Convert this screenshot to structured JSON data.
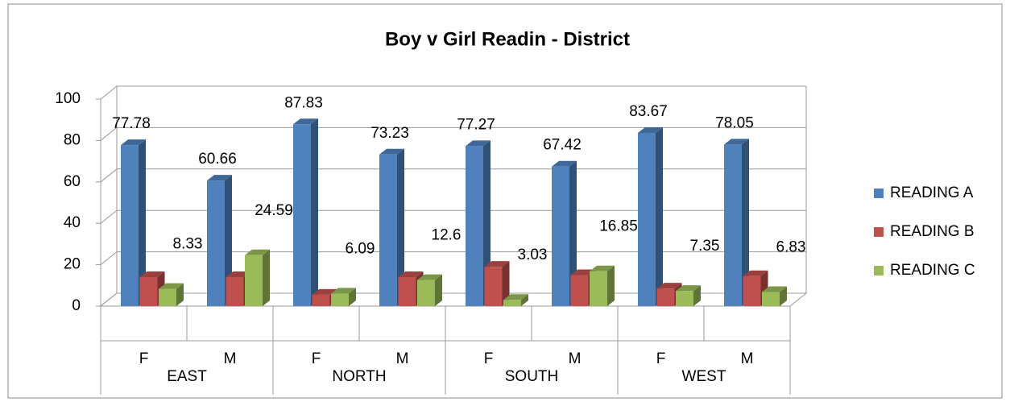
{
  "chart_data": {
    "type": "bar3d",
    "title": "Boy v Girl Readin - District",
    "categories": [
      "F",
      "M",
      "F",
      "M",
      "F",
      "M",
      "F",
      "M"
    ],
    "groups": [
      "EAST",
      "NORTH",
      "SOUTH",
      "WEST"
    ],
    "series": [
      {
        "name": "READING A",
        "color": "#4f81bd",
        "show_labels": true,
        "values": [
          77.78,
          60.66,
          87.83,
          73.23,
          77.27,
          67.42,
          83.67,
          78.05
        ]
      },
      {
        "name": "READING B",
        "color": "#c0504d",
        "show_labels": false,
        "values": [
          14,
          14,
          5.5,
          14,
          19,
          15,
          8.5,
          14.5
        ]
      },
      {
        "name": "READING C",
        "color": "#9bbb59",
        "show_labels": true,
        "values": [
          8.33,
          24.59,
          6.09,
          12.6,
          3.03,
          16.85,
          7.35,
          6.83
        ]
      }
    ],
    "ylim": [
      0,
      100
    ],
    "yticks": [
      0,
      20,
      40,
      60,
      80,
      100
    ],
    "grid": true,
    "legend": "right"
  }
}
